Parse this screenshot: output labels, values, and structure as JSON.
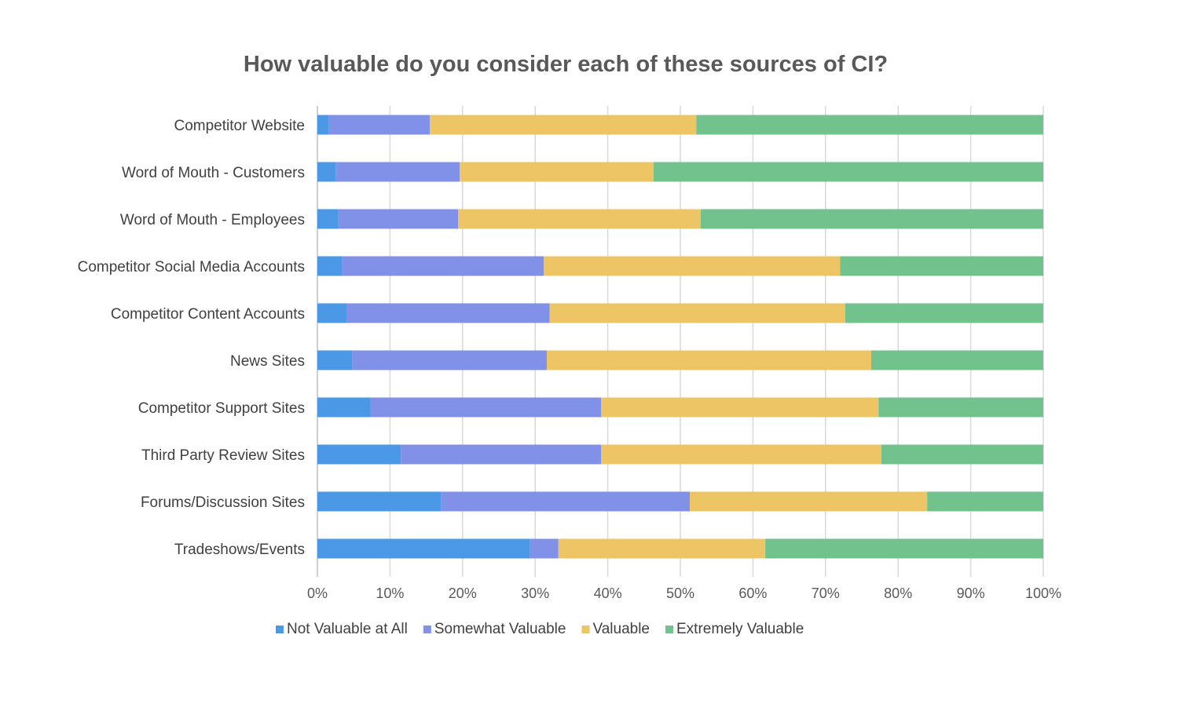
{
  "chart_data": {
    "type": "bar",
    "orientation": "horizontal",
    "stacked": "percent",
    "title": "How valuable do you consider each of these sources of CI?",
    "xlabel": "",
    "ylabel": "",
    "xlim": [
      0,
      100
    ],
    "x_ticks": [
      "0%",
      "10%",
      "20%",
      "30%",
      "40%",
      "50%",
      "60%",
      "70%",
      "80%",
      "90%",
      "100%"
    ],
    "grid": true,
    "legend_position": "bottom",
    "categories": [
      "Competitor Website",
      "Word of Mouth - Customers",
      "Word of Mouth - Employees",
      "Competitor Social Media Accounts",
      "Competitor Content Accounts",
      "News Sites",
      "Competitor Support Sites",
      "Third Party Review Sites",
      "Forums/Discussion Sites",
      "Tradeshows/Events"
    ],
    "series": [
      {
        "name": "Not Valuable at All",
        "color": "#4a98e6",
        "values": [
          1.6,
          2.5,
          2.9,
          3.4,
          4.0,
          4.8,
          7.3,
          11.5,
          17.0,
          29.3
        ]
      },
      {
        "name": "Somewhat Valuable",
        "color": "#8191e8",
        "values": [
          13.9,
          17.1,
          16.5,
          27.8,
          28.0,
          26.8,
          31.8,
          27.6,
          34.3,
          3.9
        ]
      },
      {
        "name": "Valuable",
        "color": "#edc564",
        "values": [
          36.7,
          26.7,
          33.4,
          40.8,
          40.7,
          44.7,
          38.2,
          38.6,
          32.7,
          28.5
        ]
      },
      {
        "name": "Extremely Valuable",
        "color": "#72c28d",
        "values": [
          47.8,
          53.7,
          47.2,
          28.0,
          27.3,
          23.7,
          22.7,
          22.3,
          16.0,
          38.3
        ]
      }
    ]
  }
}
